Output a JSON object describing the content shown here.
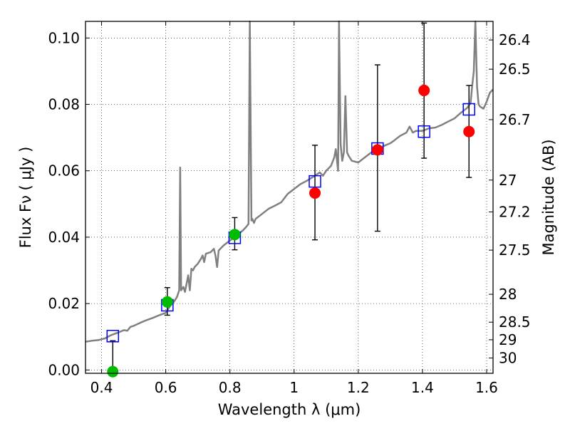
{
  "chart_data": {
    "type": "scatter",
    "xlabel": "Wavelength  λ (μm)",
    "ylabel": "Flux  Fν  ( μJy )",
    "ylabel_right": "Magnitude (AB)",
    "xlim": [
      0.35,
      1.62
    ],
    "ylim": [
      -0.001,
      0.105
    ],
    "grid": true,
    "x_ticks": [
      0.4,
      0.6,
      0.8,
      1.0,
      1.2,
      1.4,
      1.6
    ],
    "x_tick_labels": [
      "0.4",
      "0.6",
      "0.8",
      "1",
      "1.2",
      "1.4",
      "1.6"
    ],
    "y_ticks": [
      0.0,
      0.02,
      0.04,
      0.06,
      0.08,
      0.1
    ],
    "y_tick_labels": [
      "0.00",
      "0.02",
      "0.04",
      "0.06",
      "0.08",
      "0.10"
    ],
    "right_ticks": [
      {
        "label": "26.4",
        "flux": 0.0994
      },
      {
        "label": "26.5",
        "flux": 0.0906
      },
      {
        "label": "26.7",
        "flux": 0.0754
      },
      {
        "label": "27",
        "flux": 0.0572
      },
      {
        "label": "27.2",
        "flux": 0.0476
      },
      {
        "label": "27.5",
        "flux": 0.0361
      },
      {
        "label": "28",
        "flux": 0.0228
      },
      {
        "label": "28.5",
        "flux": 0.0144
      },
      {
        "label": "29",
        "flux": 0.0091
      },
      {
        "label": "30",
        "flux": 0.0036
      }
    ],
    "model_spectrum": {
      "color": "#808080",
      "points": [
        [
          0.35,
          0.0085
        ],
        [
          0.37,
          0.0088
        ],
        [
          0.39,
          0.009
        ],
        [
          0.41,
          0.0095
        ],
        [
          0.43,
          0.0105
        ],
        [
          0.45,
          0.0112
        ],
        [
          0.47,
          0.012
        ],
        [
          0.48,
          0.0118
        ],
        [
          0.49,
          0.013
        ],
        [
          0.5,
          0.0133
        ],
        [
          0.52,
          0.0142
        ],
        [
          0.54,
          0.015
        ],
        [
          0.56,
          0.0157
        ],
        [
          0.58,
          0.0165
        ],
        [
          0.6,
          0.0172
        ],
        [
          0.615,
          0.0195
        ],
        [
          0.625,
          0.0205
        ],
        [
          0.635,
          0.022
        ],
        [
          0.642,
          0.024
        ],
        [
          0.645,
          0.061
        ],
        [
          0.648,
          0.024
        ],
        [
          0.655,
          0.025
        ],
        [
          0.66,
          0.0235
        ],
        [
          0.665,
          0.026
        ],
        [
          0.67,
          0.0285
        ],
        [
          0.675,
          0.024
        ],
        [
          0.68,
          0.0305
        ],
        [
          0.685,
          0.03
        ],
        [
          0.69,
          0.031
        ],
        [
          0.7,
          0.032
        ],
        [
          0.71,
          0.0335
        ],
        [
          0.715,
          0.0345
        ],
        [
          0.72,
          0.0325
        ],
        [
          0.725,
          0.035
        ],
        [
          0.74,
          0.0355
        ],
        [
          0.75,
          0.0365
        ],
        [
          0.755,
          0.0345
        ],
        [
          0.76,
          0.031
        ],
        [
          0.765,
          0.036
        ],
        [
          0.78,
          0.0375
        ],
        [
          0.8,
          0.039
        ],
        [
          0.82,
          0.0405
        ],
        [
          0.84,
          0.042
        ],
        [
          0.85,
          0.043
        ],
        [
          0.858,
          0.044
        ],
        [
          0.862,
          0.107
        ],
        [
          0.867,
          0.045
        ],
        [
          0.87,
          0.0455
        ],
        [
          0.875,
          0.0443
        ],
        [
          0.88,
          0.0455
        ],
        [
          0.9,
          0.047
        ],
        [
          0.92,
          0.0485
        ],
        [
          0.94,
          0.0495
        ],
        [
          0.96,
          0.0505
        ],
        [
          0.98,
          0.053
        ],
        [
          1.0,
          0.0545
        ],
        [
          1.02,
          0.056
        ],
        [
          1.04,
          0.057
        ],
        [
          1.06,
          0.0582
        ],
        [
          1.08,
          0.0595
        ],
        [
          1.09,
          0.0585
        ],
        [
          1.1,
          0.06
        ],
        [
          1.115,
          0.0615
        ],
        [
          1.125,
          0.064
        ],
        [
          1.13,
          0.0665
        ],
        [
          1.137,
          0.06
        ],
        [
          1.14,
          0.107
        ],
        [
          1.145,
          0.068
        ],
        [
          1.15,
          0.063
        ],
        [
          1.155,
          0.0655
        ],
        [
          1.16,
          0.0825
        ],
        [
          1.165,
          0.0655
        ],
        [
          1.17,
          0.0645
        ],
        [
          1.18,
          0.063
        ],
        [
          1.2,
          0.0625
        ],
        [
          1.22,
          0.064
        ],
        [
          1.24,
          0.0655
        ],
        [
          1.26,
          0.0665
        ],
        [
          1.28,
          0.0675
        ],
        [
          1.3,
          0.0683
        ],
        [
          1.31,
          0.069
        ],
        [
          1.33,
          0.0705
        ],
        [
          1.35,
          0.0715
        ],
        [
          1.36,
          0.0733
        ],
        [
          1.37,
          0.0715
        ],
        [
          1.38,
          0.072
        ],
        [
          1.4,
          0.072
        ],
        [
          1.42,
          0.0728
        ],
        [
          1.44,
          0.073
        ],
        [
          1.46,
          0.0738
        ],
        [
          1.48,
          0.0748
        ],
        [
          1.5,
          0.0758
        ],
        [
          1.52,
          0.0775
        ],
        [
          1.54,
          0.079
        ],
        [
          1.55,
          0.0805
        ],
        [
          1.555,
          0.0855
        ],
        [
          1.56,
          0.09
        ],
        [
          1.565,
          0.107
        ],
        [
          1.57,
          0.0855
        ],
        [
          1.575,
          0.08
        ],
        [
          1.58,
          0.0793
        ],
        [
          1.59,
          0.0787
        ],
        [
          1.6,
          0.0808
        ],
        [
          1.61,
          0.0835
        ],
        [
          1.62,
          0.0845
        ]
      ]
    },
    "series": [
      {
        "marker": "square",
        "color": "#0000ff",
        "filled": false,
        "points": [
          {
            "x": 0.435,
            "y": 0.0102
          },
          {
            "x": 0.605,
            "y": 0.0195
          },
          {
            "x": 0.815,
            "y": 0.0398
          },
          {
            "x": 1.065,
            "y": 0.0568
          },
          {
            "x": 1.26,
            "y": 0.0667
          },
          {
            "x": 1.405,
            "y": 0.0718
          },
          {
            "x": 1.545,
            "y": 0.0785
          }
        ]
      },
      {
        "marker": "circle",
        "color": "#00bb00",
        "filled": true,
        "points": [
          {
            "x": 0.435,
            "y": -0.0005,
            "err_lo": -0.0005,
            "err_hi": 0.0088
          },
          {
            "x": 0.605,
            "y": 0.0205,
            "err_lo": 0.0165,
            "err_hi": 0.0248
          },
          {
            "x": 0.815,
            "y": 0.0408,
            "err_lo": 0.0362,
            "err_hi": 0.0459
          }
        ]
      },
      {
        "marker": "circle",
        "color": "#ff0000",
        "filled": true,
        "points": [
          {
            "x": 1.065,
            "y": 0.0533,
            "err_lo": 0.0392,
            "err_hi": 0.0677
          },
          {
            "x": 1.26,
            "y": 0.0663,
            "err_lo": 0.0418,
            "err_hi": 0.0919
          },
          {
            "x": 1.405,
            "y": 0.0842,
            "err_lo": 0.0638,
            "err_hi": 0.1045
          },
          {
            "x": 1.545,
            "y": 0.0718,
            "err_lo": 0.058,
            "err_hi": 0.0857
          }
        ]
      }
    ]
  }
}
